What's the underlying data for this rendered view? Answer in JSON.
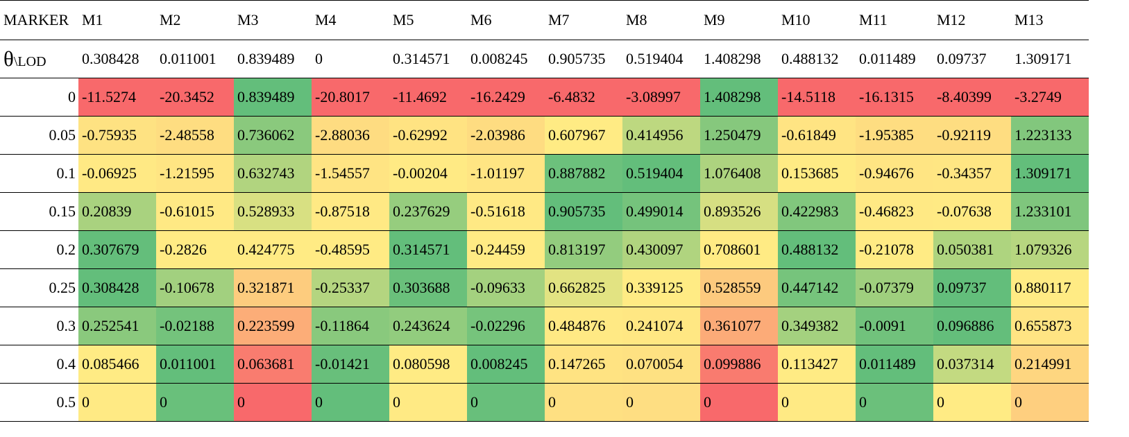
{
  "chart_data": {
    "type": "heatmap",
    "header_label": "MARKER",
    "lod_row_label_symbol": "θ",
    "lod_row_label_sub": "\\LOD",
    "columns": [
      "M1",
      "M2",
      "M3",
      "M4",
      "M5",
      "M6",
      "M7",
      "M8",
      "M9",
      "M10",
      "M11",
      "M12",
      "M13"
    ],
    "lod_values": [
      "0.308428",
      "0.011001",
      "0.839489",
      "0",
      "0.314571",
      "0.008245",
      "0.905735",
      "0.519404",
      "1.408298",
      "0.488132",
      "0.011489",
      "0.09737",
      "1.309171"
    ],
    "row_labels": [
      "0",
      "0.05",
      "0.1",
      "0.15",
      "0.2",
      "0.25",
      "0.3",
      "0.4",
      "0.5"
    ],
    "cells": [
      [
        "-11.5274",
        "-20.3452",
        "0.839489",
        "-20.8017",
        "-11.4692",
        "-16.2429",
        "-6.4832",
        "-3.08997",
        "1.408298",
        "-14.5118",
        "-16.1315",
        "-8.40399",
        "-3.2749"
      ],
      [
        "-0.75935",
        "-2.48558",
        "0.736062",
        "-2.88036",
        "-0.62992",
        "-2.03986",
        "0.607967",
        "0.414956",
        "1.250479",
        "-0.61849",
        "-1.95385",
        "-0.92119",
        "1.223133"
      ],
      [
        "-0.06925",
        "-1.21595",
        "0.632743",
        "-1.54557",
        "-0.00204",
        "-1.01197",
        "0.887882",
        "0.519404",
        "1.076408",
        "0.153685",
        "-0.94676",
        "-0.34357",
        "1.309171"
      ],
      [
        "0.20839",
        "-0.61015",
        "0.528933",
        "-0.87518",
        "0.237629",
        "-0.51618",
        "0.905735",
        "0.499014",
        "0.893526",
        "0.422983",
        "-0.46823",
        "-0.07638",
        "1.233101"
      ],
      [
        "0.307679",
        "-0.2826",
        "0.424775",
        "-0.48595",
        "0.314571",
        "-0.24459",
        "0.813197",
        "0.430097",
        "0.708601",
        "0.488132",
        "-0.21078",
        "0.050381",
        "1.079326"
      ],
      [
        "0.308428",
        "-0.10678",
        "0.321871",
        "-0.25337",
        "0.303688",
        "-0.09633",
        "0.662825",
        "0.339125",
        "0.528559",
        "0.447142",
        "-0.07379",
        "0.09737",
        "0.880117"
      ],
      [
        "0.252541",
        "-0.02188",
        "0.223599",
        "-0.11864",
        "0.243624",
        "-0.02296",
        "0.484876",
        "0.241074",
        "0.361077",
        "0.349382",
        "-0.0091",
        "0.096886",
        "0.655873"
      ],
      [
        "0.085466",
        "0.011001",
        "0.063681",
        "-0.01421",
        "0.080598",
        "0.008245",
        "0.147265",
        "0.070054",
        "0.099886",
        "0.113427",
        "0.011489",
        "0.037314",
        "0.214991"
      ],
      [
        "0",
        "0",
        "0",
        "0",
        "0",
        "0",
        "0",
        "0",
        "0",
        "0",
        "0",
        "0",
        "0"
      ]
    ],
    "color_scale": {
      "low": "#f8696b",
      "mid": "#ffeb84",
      "high": "#63be7b"
    }
  }
}
